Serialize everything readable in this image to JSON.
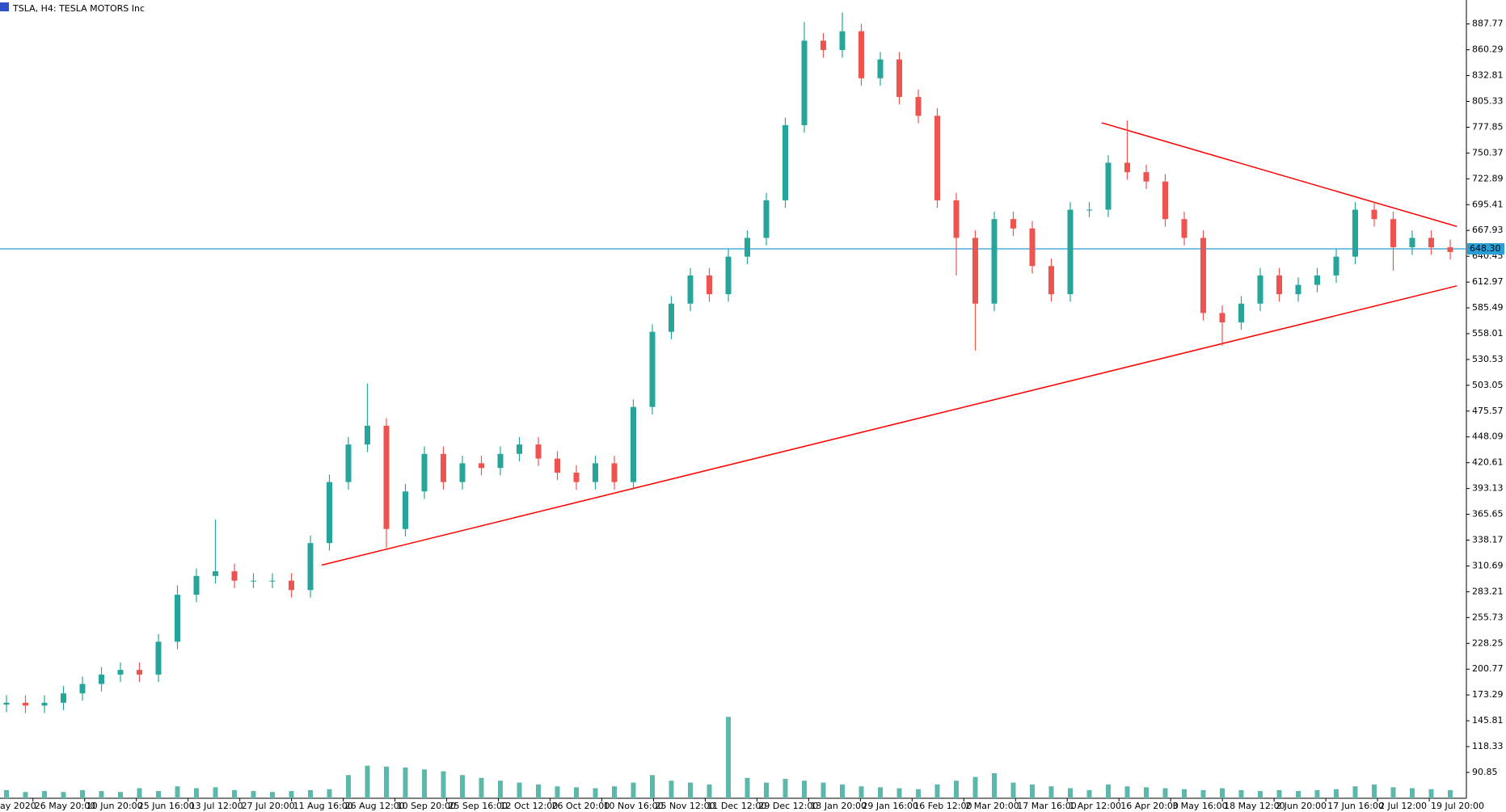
{
  "chart_data": {
    "type": "candlestick",
    "title": "TSLA, H4:  TESLA MOTORS Inc",
    "up_color": "#26a69a",
    "down_color": "#ef5350",
    "ylim": [
      63.3,
      913.3
    ],
    "yticks": [
      887.77,
      860.29,
      832.81,
      805.33,
      777.85,
      750.37,
      722.89,
      695.41,
      667.93,
      640.45,
      612.97,
      585.49,
      558.01,
      530.53,
      503.05,
      475.57,
      448.09,
      420.61,
      393.13,
      365.65,
      338.17,
      310.69,
      283.21,
      255.73,
      228.25,
      200.77,
      173.29,
      145.81,
      118.33,
      90.85
    ],
    "x_labels": [
      "ay 2020",
      "26 May 20:00",
      "10 Jun 20:00",
      "25 Jun 16:00",
      "13 Jul 12:00",
      "27 Jul 20:00",
      "11 Aug 16:00",
      "26 Aug 12:00",
      "10 Sep 20:00",
      "25 Sep 16:00",
      "12 Oct 12:00",
      "26 Oct 20:00",
      "10 Nov 16:00",
      "25 Nov 12:00",
      "11 Dec 12:00",
      "29 Dec 12:00",
      "13 Jan 20:00",
      "29 Jan 16:00",
      "16 Feb 12:00",
      "2 Mar 20:00",
      "17 Mar 16:00",
      "1 Apr 12:00",
      "16 Apr 20:00",
      "3 May 16:00",
      "18 May 12:00",
      "2 Jun 20:00",
      "17 Jun 16:00",
      "2 Jul 12:00",
      "19 Jul 20:00"
    ],
    "open": [
      163,
      165,
      162,
      165,
      175,
      185,
      195,
      200,
      195,
      230,
      280,
      300,
      305,
      295,
      295,
      295,
      285,
      335,
      400,
      440,
      460,
      350,
      390,
      430,
      400,
      420,
      415,
      430,
      440,
      425,
      410,
      400,
      420,
      400,
      480,
      560,
      590,
      620,
      600,
      640,
      660,
      700,
      780,
      870,
      860,
      880,
      830,
      850,
      810,
      790,
      700,
      660,
      590,
      680,
      670,
      630,
      600,
      690,
      690,
      740,
      730,
      720,
      680,
      660,
      580,
      570,
      590,
      620,
      600,
      610,
      620,
      640,
      690,
      680,
      650,
      660,
      650
    ],
    "high": [
      173,
      173,
      173,
      183,
      193,
      203,
      208,
      208,
      238,
      290,
      308,
      360,
      313,
      303,
      303,
      303,
      343,
      408,
      448,
      505,
      468,
      398,
      438,
      438,
      428,
      428,
      438,
      448,
      448,
      433,
      418,
      428,
      428,
      488,
      568,
      598,
      628,
      628,
      648,
      668,
      708,
      788,
      890,
      878,
      900,
      888,
      858,
      858,
      818,
      798,
      708,
      668,
      688,
      688,
      678,
      638,
      698,
      698,
      748,
      785,
      738,
      728,
      688,
      668,
      588,
      598,
      628,
      628,
      618,
      628,
      648,
      698,
      698,
      688,
      668,
      668,
      658
    ],
    "low": [
      155,
      154,
      154,
      157,
      167,
      177,
      187,
      187,
      187,
      222,
      272,
      292,
      287,
      287,
      287,
      277,
      277,
      327,
      392,
      432,
      330,
      342,
      382,
      392,
      392,
      407,
      407,
      422,
      417,
      402,
      392,
      392,
      392,
      392,
      472,
      552,
      582,
      592,
      592,
      632,
      652,
      692,
      772,
      852,
      852,
      822,
      822,
      802,
      782,
      692,
      620,
      540,
      582,
      662,
      622,
      592,
      592,
      682,
      682,
      722,
      712,
      672,
      652,
      572,
      545,
      562,
      582,
      592,
      592,
      602,
      612,
      632,
      672,
      625,
      642,
      642,
      637
    ],
    "close": [
      165,
      162,
      165,
      175,
      185,
      195,
      200,
      195,
      230,
      280,
      300,
      305,
      295,
      295,
      295,
      285,
      335,
      400,
      440,
      460,
      350,
      390,
      430,
      400,
      420,
      415,
      430,
      440,
      425,
      410,
      400,
      420,
      400,
      480,
      560,
      590,
      620,
      600,
      640,
      660,
      700,
      780,
      870,
      860,
      880,
      830,
      850,
      810,
      790,
      700,
      660,
      590,
      680,
      670,
      630,
      600,
      690,
      690,
      740,
      730,
      720,
      680,
      660,
      580,
      570,
      590,
      620,
      600,
      610,
      620,
      640,
      690,
      680,
      650,
      660,
      650,
      645
    ],
    "volume": [
      72,
      70,
      71,
      70,
      72,
      71,
      70,
      74,
      71,
      76,
      74,
      75,
      72,
      71,
      70,
      71,
      72,
      73,
      88,
      98,
      97,
      96,
      94,
      92,
      88,
      85,
      82,
      80,
      78,
      76,
      75,
      74,
      76,
      80,
      88,
      82,
      80,
      78,
      150,
      85,
      80,
      84,
      82,
      80,
      78,
      76,
      75,
      74,
      73,
      78,
      82,
      86,
      90,
      80,
      78,
      76,
      74,
      72,
      78,
      76,
      75,
      74,
      73,
      72,
      74,
      72,
      71,
      72,
      71,
      72,
      73,
      76,
      78,
      75,
      74,
      73,
      72
    ],
    "price_line": {
      "value": 648.3,
      "label": "648.30",
      "color": "#2a9fd6"
    },
    "trendlines": [
      {
        "x": [
          16.6,
          76.35
        ],
        "y": [
          311.6,
          608.9
        ],
        "color": "#ff0000"
      },
      {
        "x": [
          57.65,
          76.35
        ],
        "y": [
          782.6,
          672.2
        ],
        "color": "#ff0000"
      }
    ]
  }
}
